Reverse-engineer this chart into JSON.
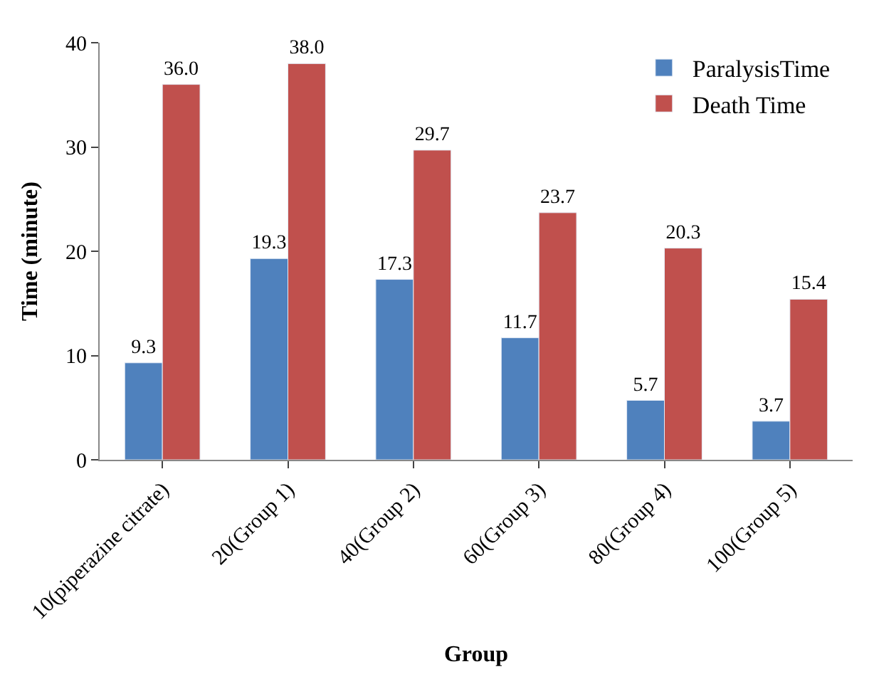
{
  "chart_data": {
    "type": "bar",
    "xlabel": "Group",
    "ylabel": "Time (minute)",
    "categories": [
      "10(piperazine citrate)",
      "20(Group 1)",
      "40(Group 2)",
      "60(Group 3)",
      "80(Group 4)",
      "100(Group 5)"
    ],
    "series": [
      {
        "name": "ParalysisTime",
        "color": "#4f81bd",
        "values": [
          9.3,
          19.3,
          17.3,
          11.7,
          5.7,
          3.7
        ],
        "value_labels": [
          "9.3",
          "19.3",
          "17.3",
          "11.7",
          "5.7",
          "3.7"
        ]
      },
      {
        "name": "Death Time",
        "color": "#c0504d",
        "values": [
          36.0,
          38.0,
          29.7,
          23.7,
          20.3,
          15.4
        ],
        "value_labels": [
          "36.0",
          "38.0",
          "29.7",
          "23.7",
          "20.3",
          "15.4"
        ]
      }
    ],
    "ylim": [
      0,
      40
    ],
    "yticks": [
      0,
      10,
      20,
      30,
      40
    ],
    "legend": "top right"
  }
}
